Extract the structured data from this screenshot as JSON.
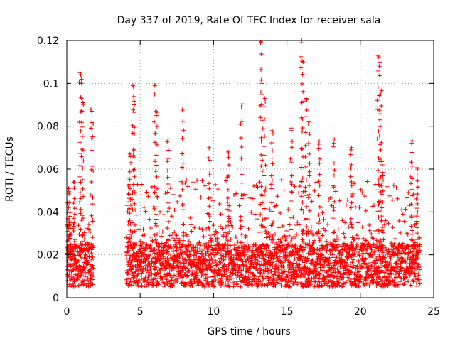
{
  "chart_data": {
    "type": "scatter",
    "title": "Day 337 of 2019, Rate Of TEC Index for receiver sala",
    "xlabel": "GPS time / hours",
    "ylabel": "ROTI / TECUs",
    "xlim": [
      0,
      25
    ],
    "ylim": [
      0,
      0.12
    ],
    "xticks": [
      0,
      5,
      10,
      15,
      20,
      25
    ],
    "xtick_labels": [
      "0",
      "5",
      "10",
      "15",
      "20",
      "25"
    ],
    "yticks": [
      0,
      0.02,
      0.04,
      0.06,
      0.08,
      0.1,
      0.12
    ],
    "ytick_labels": [
      "0",
      "0.02",
      "0.04",
      "0.06",
      "0.08",
      "0.1",
      "0.12"
    ],
    "grid": true,
    "marker": "+",
    "color": "#ff0000",
    "data_gap_hours": [
      1.8,
      4.0
    ],
    "series": [
      {
        "name": "ROTI",
        "description_points": [
          {
            "x": 0.0,
            "y": 0.013
          },
          {
            "x": 0.1,
            "y": 0.051
          },
          {
            "x": 0.2,
            "y": 0.038
          },
          {
            "x": 0.5,
            "y": 0.054
          },
          {
            "x": 0.9,
            "y": 0.105
          },
          {
            "x": 1.0,
            "y": 0.1
          },
          {
            "x": 1.1,
            "y": 0.091
          },
          {
            "x": 1.7,
            "y": 0.087
          },
          {
            "x": 1.8,
            "y": 0.081
          },
          {
            "x": 4.2,
            "y": 0.052
          },
          {
            "x": 4.3,
            "y": 0.067
          },
          {
            "x": 4.5,
            "y": 0.099
          },
          {
            "x": 4.6,
            "y": 0.09
          },
          {
            "x": 6.0,
            "y": 0.099
          },
          {
            "x": 6.1,
            "y": 0.085
          },
          {
            "x": 6.9,
            "y": 0.074
          },
          {
            "x": 7.9,
            "y": 0.088
          },
          {
            "x": 9.7,
            "y": 0.07
          },
          {
            "x": 11.0,
            "y": 0.068
          },
          {
            "x": 11.9,
            "y": 0.089
          },
          {
            "x": 13.2,
            "y": 0.119
          },
          {
            "x": 13.3,
            "y": 0.1
          },
          {
            "x": 13.5,
            "y": 0.093
          },
          {
            "x": 14.0,
            "y": 0.078
          },
          {
            "x": 15.3,
            "y": 0.078
          },
          {
            "x": 16.0,
            "y": 0.12
          },
          {
            "x": 16.1,
            "y": 0.11
          },
          {
            "x": 16.3,
            "y": 0.093
          },
          {
            "x": 16.5,
            "y": 0.082
          },
          {
            "x": 17.2,
            "y": 0.073
          },
          {
            "x": 18.2,
            "y": 0.072
          },
          {
            "x": 19.4,
            "y": 0.07
          },
          {
            "x": 21.2,
            "y": 0.113
          },
          {
            "x": 21.3,
            "y": 0.108
          },
          {
            "x": 21.4,
            "y": 0.095
          },
          {
            "x": 21.5,
            "y": 0.062
          },
          {
            "x": 23.5,
            "y": 0.072
          },
          {
            "x": 23.9,
            "y": 0.06
          }
        ],
        "baseline_range": [
          0.005,
          0.025
        ]
      }
    ]
  }
}
